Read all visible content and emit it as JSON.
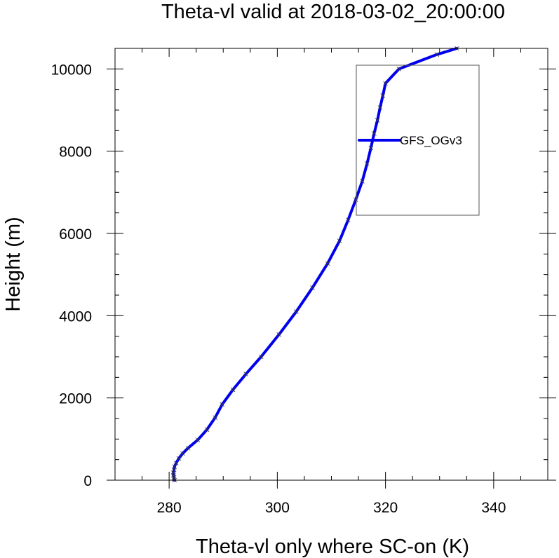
{
  "chart_data": {
    "type": "line",
    "title": "Theta-vl valid at 2018-03-02_20:00:00",
    "xlabel": "Theta-vl only where SC-on (K)",
    "ylabel": "Height (m)",
    "xlim": [
      270,
      350
    ],
    "ylim": [
      0,
      10500
    ],
    "xticks": [
      280,
      300,
      320,
      340
    ],
    "yticks": [
      0,
      2000,
      4000,
      6000,
      8000,
      10000
    ],
    "xtick_labels": [
      "280",
      "300",
      "320",
      "340"
    ],
    "ytick_labels": [
      "0",
      "2000",
      "4000",
      "6000",
      "8000",
      "10000"
    ],
    "x_minor_step": 5,
    "y_minor_step": 500,
    "legend_position": "upper-right",
    "series": [
      {
        "name": "GFS_OGv3",
        "color": "#0000ee",
        "marker": "x",
        "points": [
          [
            281.0,
            0
          ],
          [
            280.9,
            30
          ],
          [
            280.9,
            70
          ],
          [
            280.8,
            120
          ],
          [
            280.8,
            180
          ],
          [
            280.9,
            250
          ],
          [
            281.0,
            330
          ],
          [
            281.3,
            420
          ],
          [
            281.8,
            530
          ],
          [
            282.5,
            650
          ],
          [
            283.5,
            780
          ],
          [
            285.3,
            980
          ],
          [
            287.0,
            1230
          ],
          [
            288.5,
            1520
          ],
          [
            289.8,
            1840
          ],
          [
            291.8,
            2200
          ],
          [
            294.2,
            2580
          ],
          [
            297.0,
            3000
          ],
          [
            300.3,
            3540
          ],
          [
            303.5,
            4100
          ],
          [
            306.5,
            4680
          ],
          [
            309.3,
            5270
          ],
          [
            311.5,
            5820
          ],
          [
            313.1,
            6330
          ],
          [
            314.5,
            6820
          ],
          [
            315.7,
            7270
          ],
          [
            316.6,
            7700
          ],
          [
            317.3,
            8080
          ],
          [
            317.9,
            8430
          ],
          [
            318.5,
            8750
          ],
          [
            319.0,
            9060
          ],
          [
            319.5,
            9350
          ],
          [
            320.0,
            9650
          ],
          [
            322.5,
            10000
          ],
          [
            329.5,
            10350
          ],
          [
            333.2,
            10500
          ]
        ]
      }
    ]
  }
}
